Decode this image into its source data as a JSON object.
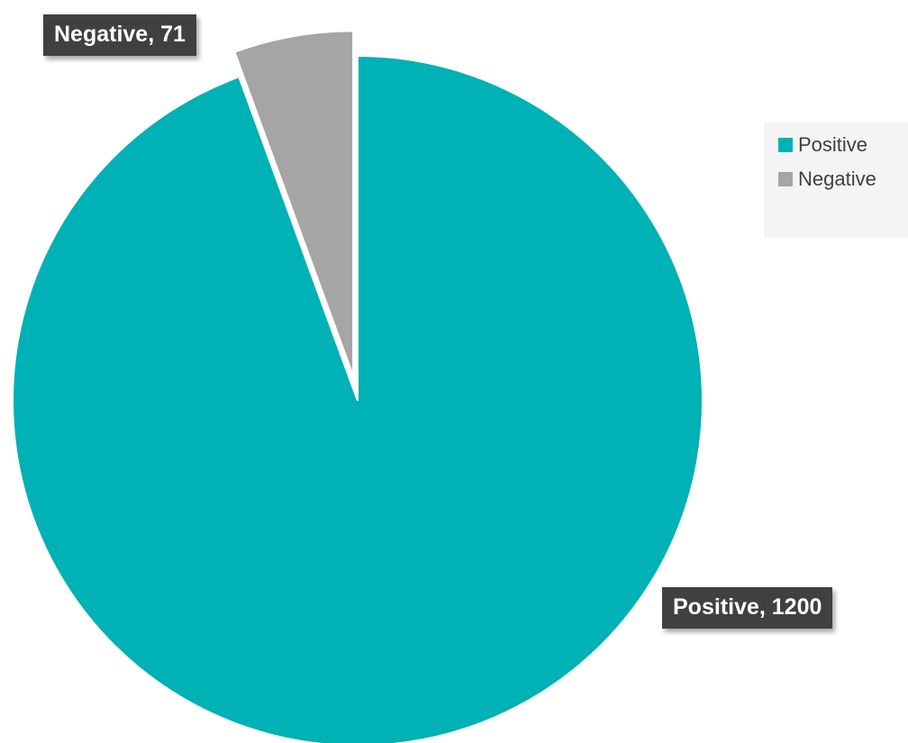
{
  "chart_data": {
    "type": "pie",
    "title": "",
    "categories": [
      "Positive",
      "Negative"
    ],
    "values": [
      1200,
      71
    ],
    "colors": [
      "#00b1b5",
      "#a5a5a5"
    ],
    "data_labels": [
      "Positive, 1200",
      "Negative, 71"
    ],
    "exploded_slice": "Negative",
    "legend": {
      "position": "right",
      "items": [
        {
          "label": "Positive",
          "color": "#00b1b5"
        },
        {
          "label": "Negative",
          "color": "#a5a5a5"
        }
      ]
    }
  }
}
